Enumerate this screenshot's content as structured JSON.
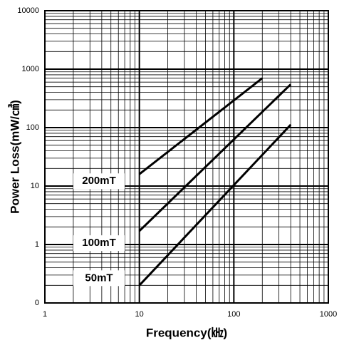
{
  "chart_data": {
    "type": "line",
    "x_label": "Frequency(㎑)",
    "y_label": "Power Loss(mW/㎤)",
    "series": [
      {
        "name": "200mT",
        "color": "#000000",
        "x": [
          10,
          200
        ],
        "values": [
          16,
          700
        ]
      },
      {
        "name": "100mT",
        "color": "#000000",
        "x": [
          10,
          400
        ],
        "values": [
          1.7,
          550
        ]
      },
      {
        "name": "50mT",
        "color": "#000000",
        "x": [
          10,
          400
        ],
        "values": [
          0.2,
          112
        ]
      }
    ],
    "xlim": [
      1,
      1000
    ],
    "ylim": [
      0.1,
      10000
    ],
    "xticks": [
      1,
      10,
      100,
      1000
    ],
    "yticks": [
      {
        "value": 0.1,
        "label": "0"
      },
      1,
      10,
      100,
      1000,
      10000
    ],
    "xscale": "log",
    "yscale": "log",
    "grid": true,
    "minor_grid": true
  }
}
